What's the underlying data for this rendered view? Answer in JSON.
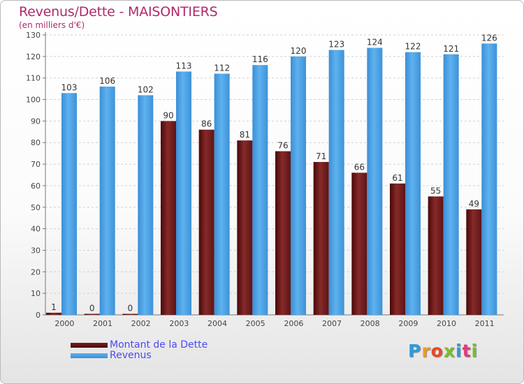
{
  "title": "Revenus/Dette - MAISONTIERS",
  "subtitle": "(en milliers d'€)",
  "chart_data": {
    "type": "bar",
    "categories": [
      "2000",
      "2001",
      "2002",
      "2003",
      "2004",
      "2005",
      "2006",
      "2007",
      "2008",
      "2009",
      "2010",
      "2011"
    ],
    "series": [
      {
        "name": "Montant de la Dette",
        "color": "#7a1f1f",
        "values": [
          1,
          0,
          0,
          90,
          86,
          81,
          76,
          71,
          66,
          61,
          55,
          49
        ]
      },
      {
        "name": "Revenus",
        "color": "#4aa3e6",
        "values": [
          103,
          106,
          102,
          113,
          112,
          116,
          120,
          123,
          124,
          122,
          121,
          126
        ]
      }
    ],
    "yticks": [
      0,
      10,
      20,
      30,
      40,
      50,
      60,
      70,
      80,
      90,
      100,
      110,
      120,
      130
    ],
    "ylim": [
      0,
      130
    ],
    "grid": true,
    "legend_position": "bottom-left"
  },
  "legend": {
    "debt_label": "Montant de la Dette",
    "revenue_label": "Revenus"
  },
  "logo": {
    "letters": [
      "P",
      "r",
      "o",
      "x",
      "i",
      "t",
      "i"
    ],
    "colors": [
      "#2f9ad8",
      "#f29a1f",
      "#e84a1f",
      "#7cbf2a",
      "#2f9ad8",
      "#e23a7c",
      "#7cbf2a"
    ]
  }
}
